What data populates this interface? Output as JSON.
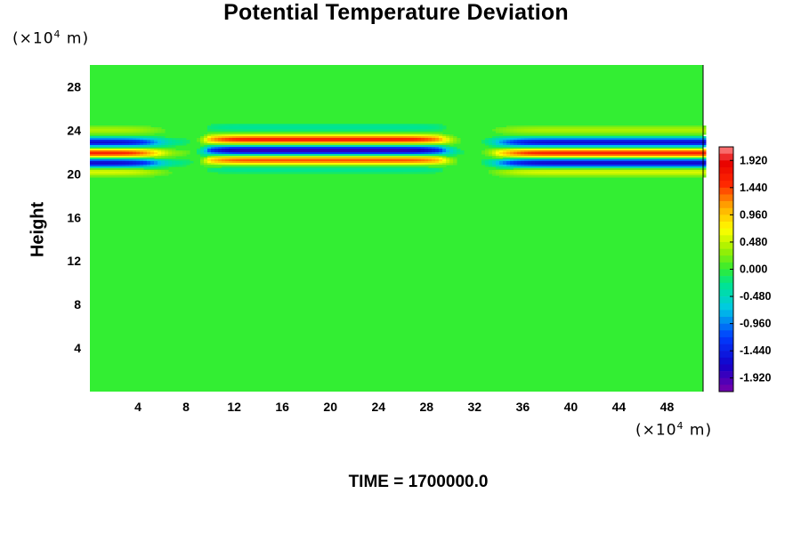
{
  "chart_data": {
    "type": "heatmap",
    "title": "Potential Temperature Deviation",
    "ylabel": "Height",
    "y_unit_prefix": "(×10",
    "y_unit_exp": "4",
    "y_unit_suffix": " m)",
    "x_unit_prefix": "(×10",
    "x_unit_exp": "4",
    "x_unit_suffix": " m)",
    "xlim": [
      0,
      51
    ],
    "ylim": [
      0,
      30
    ],
    "x_ticks": [
      "4",
      "8",
      "12",
      "16",
      "20",
      "24",
      "28",
      "32",
      "36",
      "40",
      "44",
      "48"
    ],
    "y_ticks": [
      "4",
      "8",
      "12",
      "16",
      "20",
      "24",
      "28"
    ],
    "colorbar": {
      "range": [
        -2.16,
        2.16
      ],
      "tick_labels": [
        "1.920",
        "1.440",
        "0.960",
        "0.480",
        "0.000",
        "-0.480",
        "-0.960",
        "-1.440",
        "-1.920"
      ]
    },
    "field_description_bands": [
      {
        "y": 20.2,
        "value_left": 0.6,
        "value_mid": -0.3,
        "value_right": 0.6
      },
      {
        "y": 21.0,
        "value_left": -1.7,
        "value_mid": 1.4,
        "value_right": -1.7
      },
      {
        "y": 21.9,
        "value_left": 1.6,
        "value_mid": -1.9,
        "value_right": 1.6
      },
      {
        "y": 22.9,
        "value_left": -1.6,
        "value_mid": 1.6,
        "value_right": -1.6
      },
      {
        "y": 24.0,
        "value_left": 0.4,
        "value_mid": -0.3,
        "value_right": 0.4
      }
    ],
    "time_label": "TIME = ",
    "time_value": "1700000.0"
  }
}
